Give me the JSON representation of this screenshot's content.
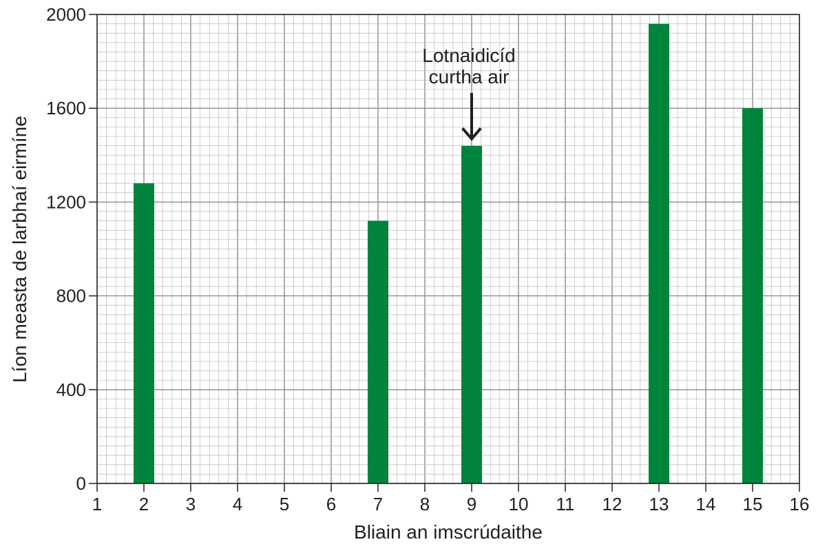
{
  "chart_data": {
    "type": "bar",
    "title": "",
    "xlabel": "Bliain an imscrúdaithe",
    "ylabel": "Líon measta de larbhaí eirmíne",
    "xlim": [
      1,
      16
    ],
    "ylim": [
      0,
      2000
    ],
    "x_ticks": [
      "1",
      "2",
      "3",
      "4",
      "5",
      "6",
      "7",
      "8",
      "9",
      "10",
      "11",
      "12",
      "13",
      "14",
      "15",
      "16"
    ],
    "y_ticks": [
      "0",
      "400",
      "800",
      "1200",
      "1600",
      "2000"
    ],
    "grid": true,
    "bar_color": "#00843d",
    "x": [
      2,
      7,
      9,
      13,
      15
    ],
    "values": [
      1280,
      1120,
      1440,
      1960,
      1600
    ],
    "annotation": {
      "text_lines": [
        "Lotnaidicíd",
        "curtha air"
      ],
      "x": 9,
      "arrow_to_value": 1440
    }
  }
}
